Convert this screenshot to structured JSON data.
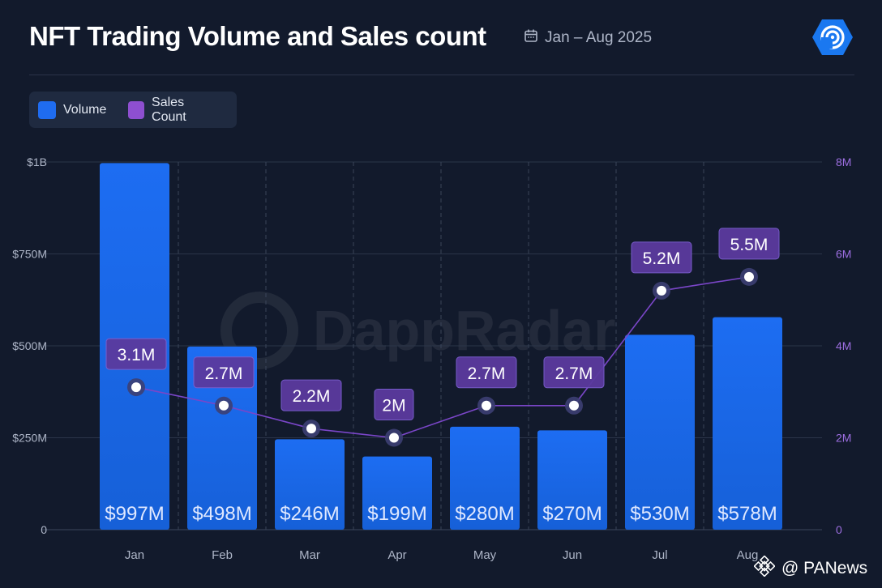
{
  "header": {
    "title": "NFT Trading Volume and Sales count",
    "date_range": "Jan – Aug 2025",
    "calendar_icon": "calendar-icon",
    "brand_icon": "dappradar-logo-icon"
  },
  "legend": {
    "items": [
      {
        "label": "Volume",
        "color": "#1f6cf0"
      },
      {
        "label": "Sales Count",
        "color": "#8e4fd0"
      }
    ]
  },
  "watermark": {
    "text": "DappRadar"
  },
  "credit": {
    "text": "@ PANews",
    "icon": "binance-diamond-icon"
  },
  "chart_data": {
    "type": "bar",
    "categories": [
      "Jan",
      "Feb",
      "Mar",
      "Apr",
      "May",
      "Jun",
      "Jul",
      "Aug"
    ],
    "series": [
      {
        "name": "Volume",
        "kind": "bar",
        "axis": "left",
        "values": [
          997,
          498,
          246,
          199,
          280,
          270,
          530,
          578
        ],
        "labels": [
          "$997M",
          "$498M",
          "$246M",
          "$199M",
          "$280M",
          "$270M",
          "$530M",
          "$578M"
        ],
        "color": "#1f6cf0"
      },
      {
        "name": "Sales Count",
        "kind": "line",
        "axis": "right",
        "values": [
          3.1,
          2.7,
          2.2,
          2.0,
          2.7,
          2.7,
          5.2,
          5.5
        ],
        "labels": [
          "3.1M",
          "2.7M",
          "2.2M",
          "2M",
          "2.7M",
          "2.7M",
          "5.2M",
          "5.5M"
        ],
        "color": "#8e4fd0"
      }
    ],
    "y_left": {
      "min": 0,
      "max": 1000,
      "ticks": [
        0,
        250,
        500,
        750,
        1000
      ],
      "tick_labels": [
        "0",
        "$250M",
        "$500M",
        "$750M",
        "$1B"
      ]
    },
    "y_right": {
      "min": 0,
      "max": 8,
      "ticks": [
        0,
        2,
        4,
        6,
        8
      ],
      "tick_labels": [
        "0",
        "2M",
        "4M",
        "6M",
        "8M"
      ]
    },
    "grid": true,
    "legend_position": "top-left"
  }
}
